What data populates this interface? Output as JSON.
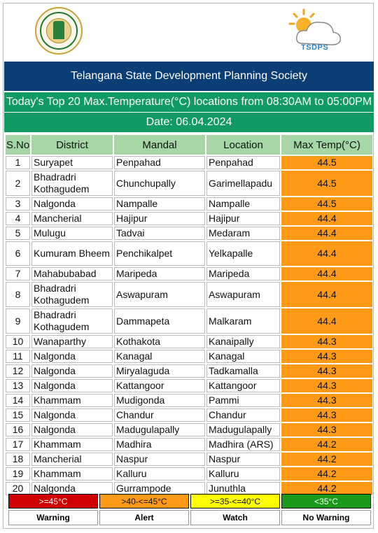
{
  "header": {
    "org_title": "Telangana State Development Planning Society",
    "report_title": "Today's Top 20 Max.Temperature(°C) locations from 08:30AM to 05:00PM",
    "date_text": "Date: 06.04.2024",
    "logo_text": "TSDPS",
    "emblem_text": "GOVERNMENT OF TELANGANA"
  },
  "colors": {
    "banner": "#0b3d76",
    "subbar": "#119a63",
    "header_cell": "#a6d6a5",
    "alert": "#ff9a17"
  },
  "table": {
    "columns": [
      "S.No",
      "District",
      "Mandal",
      "Location",
      "Max Temp(°C)"
    ],
    "rows": [
      {
        "sno": "1",
        "district": "Suryapet",
        "mandal": "Penpahad",
        "location": "Penpahad",
        "temp": "44.5"
      },
      {
        "sno": "2",
        "district": "Bhadradri Kothagudem",
        "mandal": "Chunchupally",
        "location": "Garimellapadu",
        "temp": "44.5"
      },
      {
        "sno": "3",
        "district": "Nalgonda",
        "mandal": "Nampalle",
        "location": "Nampalle",
        "temp": "44.5"
      },
      {
        "sno": "4",
        "district": "Mancherial",
        "mandal": "Hajipur",
        "location": "Hajipur",
        "temp": "44.4"
      },
      {
        "sno": "5",
        "district": "Mulugu",
        "mandal": "Tadvai",
        "location": "Medaram",
        "temp": "44.4"
      },
      {
        "sno": "6",
        "district": "Kumuram Bheem",
        "mandal": "Penchikalpet",
        "location": "Yelkapalle",
        "temp": "44.4"
      },
      {
        "sno": "7",
        "district": "Mahabubabad",
        "mandal": "Maripeda",
        "location": "Maripeda",
        "temp": "44.4"
      },
      {
        "sno": "8",
        "district": "Bhadradri Kothagudem",
        "mandal": "Aswapuram",
        "location": "Aswapuram",
        "temp": "44.4"
      },
      {
        "sno": "9",
        "district": "Bhadradri Kothagudem",
        "mandal": "Dammapeta",
        "location": "Malkaram",
        "temp": "44.4"
      },
      {
        "sno": "10",
        "district": "Wanaparthy",
        "mandal": "Kothakota",
        "location": "Kanaipally",
        "temp": "44.3"
      },
      {
        "sno": "11",
        "district": "Nalgonda",
        "mandal": "Kanagal",
        "location": "Kanagal",
        "temp": "44.3"
      },
      {
        "sno": "12",
        "district": "Nalgonda",
        "mandal": "Miryalaguda",
        "location": "Tadkamalla",
        "temp": "44.3"
      },
      {
        "sno": "13",
        "district": "Nalgonda",
        "mandal": "Kattangoor",
        "location": "Kattangoor",
        "temp": "44.3"
      },
      {
        "sno": "14",
        "district": "Khammam",
        "mandal": "Mudigonda",
        "location": "Pammi",
        "temp": "44.3"
      },
      {
        "sno": "15",
        "district": "Nalgonda",
        "mandal": "Chandur",
        "location": "Chandur",
        "temp": "44.3"
      },
      {
        "sno": "16",
        "district": "Nalgonda",
        "mandal": "Madugulapally",
        "location": "Madugulapally",
        "temp": "44.3"
      },
      {
        "sno": "17",
        "district": "Khammam",
        "mandal": "Madhira",
        "location": "Madhira (ARS)",
        "temp": "44.2"
      },
      {
        "sno": "18",
        "district": "Mancherial",
        "mandal": "Naspur",
        "location": "Naspur",
        "temp": "44.2"
      },
      {
        "sno": "19",
        "district": "Khammam",
        "mandal": "Kalluru",
        "location": "Kalluru",
        "temp": "44.2"
      },
      {
        "sno": "20",
        "district": "Nalgonda",
        "mandal": "Gurrampode",
        "location": "Junuthla",
        "temp": "44.2"
      }
    ]
  },
  "legend": [
    {
      "range": ">=45°C",
      "label": "Warning",
      "color": "#d00000",
      "text_color": "#ffffff"
    },
    {
      "range": ">40-<=45°C",
      "label": "Alert",
      "color": "#ff9a17",
      "text_color": "#111111"
    },
    {
      "range": ">=35-<=40°C",
      "label": "Watch",
      "color": "#ffff00",
      "text_color": "#111111"
    },
    {
      "range": "<35°C",
      "label": "No Warning",
      "color": "#1a9a1a",
      "text_color": "#ffffff"
    }
  ]
}
